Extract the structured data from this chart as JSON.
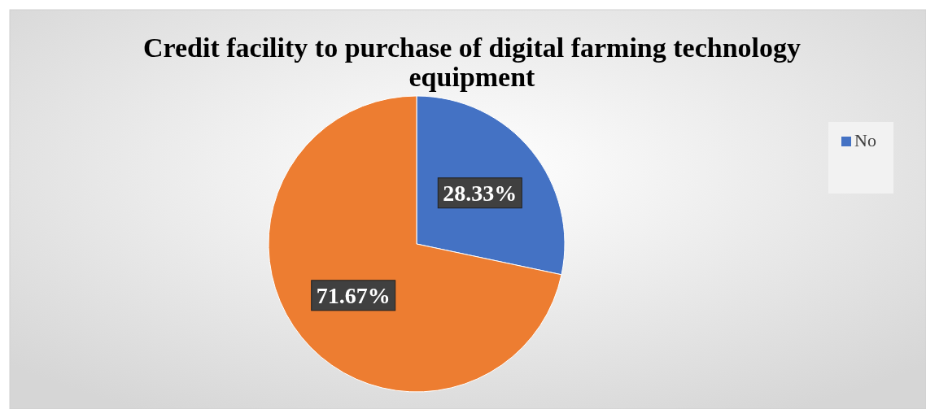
{
  "chart_data": {
    "type": "pie",
    "title": "Credit facility to purchase of digital farming technology equipment",
    "categories": [
      "No",
      null
    ],
    "values": [
      28.33,
      71.67
    ],
    "colors": [
      "#4472c4",
      "#ed7d31"
    ],
    "value_labels": [
      "28.33%",
      "71.67%"
    ],
    "legend": "right"
  }
}
